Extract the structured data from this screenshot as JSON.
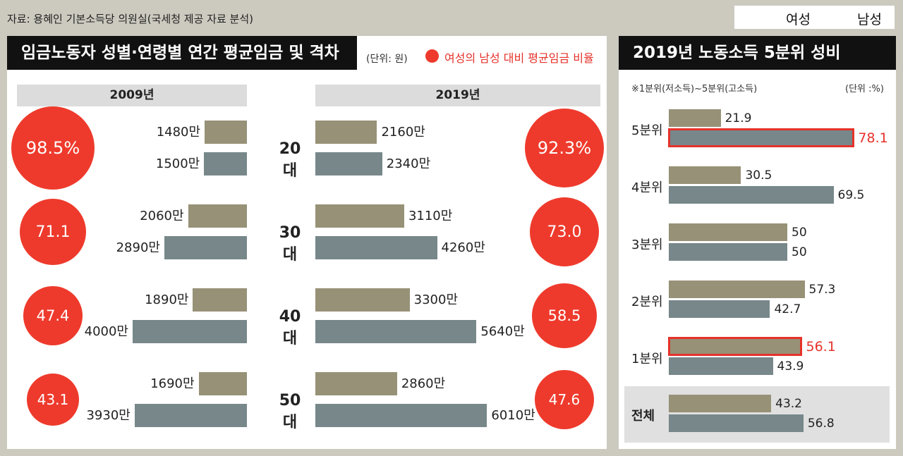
{
  "source": "자료: 용혜인 기본소득당 의원실(국세청 제공 자료 분석)",
  "legend": {
    "female": "여성",
    "male": "남성",
    "female_color": "#979177",
    "male_color": "#77878a"
  },
  "left_panel": {
    "title": "임금노동자 성별·연령별 연간 평균임금 및 격차",
    "unit": "(단위: 원)",
    "ratio_legend": "여성의 남성 대비 평균임금 비율",
    "ratio_color": "#ee3a2c"
  },
  "right_panel": {
    "title": "2019년 노동소득 5분위 성비",
    "note": "※1분위(저소득)~5분위(고소득)",
    "unit": "(단위 :%)"
  },
  "chart_data": [
    {
      "type": "bar",
      "title": "임금노동자 성별·연령별 연간 평균임금 및 격차",
      "unit": "원",
      "categories": [
        "20대",
        "30대",
        "40대",
        "50대"
      ],
      "years": [
        "2009년",
        "2019년"
      ],
      "series": [
        {
          "name": "여성",
          "year": "2009년",
          "values": [
            1480,
            2060,
            1890,
            1690
          ],
          "labels": [
            "1480만",
            "2060만",
            "1890만",
            "1690만"
          ]
        },
        {
          "name": "남성",
          "year": "2009년",
          "values": [
            1500,
            2890,
            4000,
            3930
          ],
          "labels": [
            "1500만",
            "2890만",
            "4000만",
            "3930만"
          ]
        },
        {
          "name": "여성",
          "year": "2019년",
          "values": [
            2160,
            3110,
            3300,
            2860
          ],
          "labels": [
            "2160만",
            "3110만",
            "3300만",
            "2860만"
          ]
        },
        {
          "name": "남성",
          "year": "2019년",
          "values": [
            2340,
            4260,
            5640,
            6010
          ],
          "labels": [
            "2340만",
            "4260만",
            "5640만",
            "6010만"
          ]
        }
      ],
      "ratio": {
        "name": "여성의 남성 대비 평균임금 비율",
        "2009년": [
          "98.5%",
          "71.1",
          "47.4",
          "43.1"
        ],
        "2019년": [
          "92.3%",
          "73.0",
          "58.5",
          "47.6"
        ]
      }
    },
    {
      "type": "bar",
      "title": "2019년 노동소득 5분위 성비",
      "unit": "%",
      "categories": [
        "5분위",
        "4분위",
        "3분위",
        "2분위",
        "1분위",
        "전체"
      ],
      "series": [
        {
          "name": "여성",
          "values": [
            21.9,
            30.5,
            50,
            57.3,
            56.1,
            43.2
          ],
          "labels": [
            "21.9",
            "30.5",
            "50",
            "57.3",
            "56.1",
            "43.2"
          ]
        },
        {
          "name": "남성",
          "values": [
            78.1,
            69.5,
            50,
            42.7,
            43.9,
            56.8
          ],
          "labels": [
            "78.1",
            "69.5",
            "50",
            "42.7",
            "43.9",
            "56.8"
          ]
        }
      ],
      "highlight": [
        "5분위 남성",
        "1분위 여성"
      ]
    }
  ]
}
